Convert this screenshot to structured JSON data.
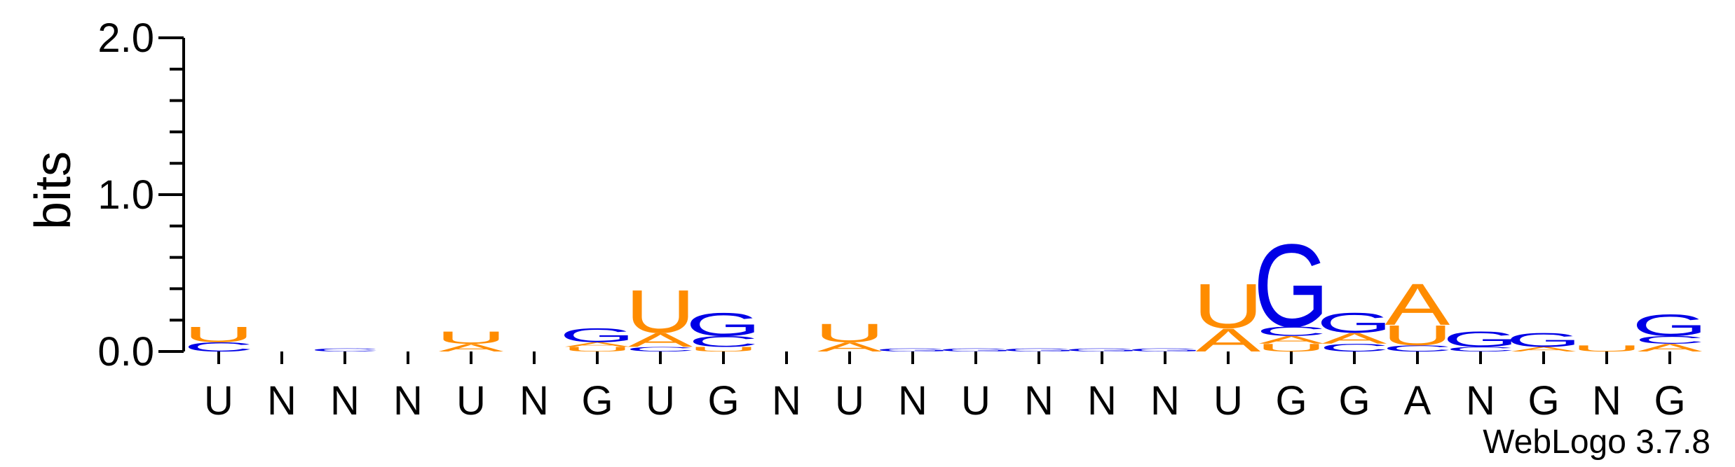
{
  "chart_data": {
    "type": "sequence-logo",
    "ylabel": "bits",
    "ylim": [
      0,
      2.0
    ],
    "yticks": [
      "0.0",
      "1.0",
      "2.0"
    ],
    "credit": "WebLogo 3.7.8",
    "colors": {
      "A": "#ff8c00",
      "U": "#ff8c00",
      "G": "#0000e6",
      "C": "#0000e6"
    },
    "positions": [
      {
        "label": "U",
        "stack": [
          {
            "letter": "C",
            "bits": 0.06
          },
          {
            "letter": "U",
            "bits": 0.1
          }
        ]
      },
      {
        "label": "N",
        "stack": []
      },
      {
        "label": "N",
        "stack": [
          {
            "letter": "C",
            "bits": 0.02
          }
        ]
      },
      {
        "label": "N",
        "stack": []
      },
      {
        "label": "U",
        "stack": [
          {
            "letter": "A",
            "bits": 0.05
          },
          {
            "letter": "U",
            "bits": 0.08
          }
        ]
      },
      {
        "label": "N",
        "stack": []
      },
      {
        "label": "G",
        "stack": [
          {
            "letter": "U",
            "bits": 0.03
          },
          {
            "letter": "A",
            "bits": 0.03
          },
          {
            "letter": "G",
            "bits": 0.09
          }
        ]
      },
      {
        "label": "U",
        "stack": [
          {
            "letter": "C",
            "bits": 0.03
          },
          {
            "letter": "A",
            "bits": 0.09
          },
          {
            "letter": "U",
            "bits": 0.28
          }
        ]
      },
      {
        "label": "G",
        "stack": [
          {
            "letter": "U",
            "bits": 0.03
          },
          {
            "letter": "C",
            "bits": 0.07
          },
          {
            "letter": "G",
            "bits": 0.15
          }
        ]
      },
      {
        "label": "N",
        "stack": []
      },
      {
        "label": "U",
        "stack": [
          {
            "letter": "A",
            "bits": 0.06
          },
          {
            "letter": "U",
            "bits": 0.12
          }
        ]
      },
      {
        "label": "N",
        "stack": [
          {
            "letter": "G",
            "bits": 0.02
          }
        ]
      },
      {
        "label": "U",
        "stack": [
          {
            "letter": "G",
            "bits": 0.02
          }
        ]
      },
      {
        "label": "N",
        "stack": [
          {
            "letter": "G",
            "bits": 0.02
          }
        ]
      },
      {
        "label": "N",
        "stack": [
          {
            "letter": "G",
            "bits": 0.02
          }
        ]
      },
      {
        "label": "N",
        "stack": [
          {
            "letter": "G",
            "bits": 0.02
          }
        ]
      },
      {
        "label": "U",
        "stack": [
          {
            "letter": "A",
            "bits": 0.15
          },
          {
            "letter": "U",
            "bits": 0.29
          }
        ]
      },
      {
        "label": "G",
        "stack": [
          {
            "letter": "U",
            "bits": 0.05
          },
          {
            "letter": "A",
            "bits": 0.05
          },
          {
            "letter": "C",
            "bits": 0.06
          },
          {
            "letter": "G",
            "bits": 0.54
          }
        ]
      },
      {
        "label": "G",
        "stack": [
          {
            "letter": "C",
            "bits": 0.05
          },
          {
            "letter": "A",
            "bits": 0.07
          },
          {
            "letter": "G",
            "bits": 0.13
          }
        ]
      },
      {
        "label": "A",
        "stack": [
          {
            "letter": "C",
            "bits": 0.04
          },
          {
            "letter": "U",
            "bits": 0.13
          },
          {
            "letter": "A",
            "bits": 0.27
          }
        ]
      },
      {
        "label": "N",
        "stack": [
          {
            "letter": "C",
            "bits": 0.03
          },
          {
            "letter": "G",
            "bits": 0.1
          }
        ]
      },
      {
        "label": "G",
        "stack": [
          {
            "letter": "A",
            "bits": 0.03
          },
          {
            "letter": "G",
            "bits": 0.09
          }
        ]
      },
      {
        "label": "N",
        "stack": [
          {
            "letter": "U",
            "bits": 0.04
          }
        ]
      },
      {
        "label": "G",
        "stack": [
          {
            "letter": "A",
            "bits": 0.05
          },
          {
            "letter": "C",
            "bits": 0.05
          },
          {
            "letter": "G",
            "bits": 0.14
          }
        ]
      }
    ]
  }
}
